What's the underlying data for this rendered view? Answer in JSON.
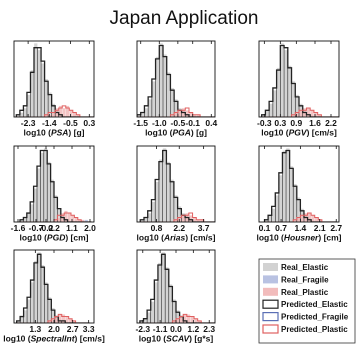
{
  "title": "Japan Application",
  "colors": {
    "real_elastic": "#d2d2d2",
    "real_fragile": "#b9c2e2",
    "real_plastic": "#f2bcbc",
    "predicted_elastic": "#222222",
    "predicted_fragile": "#5b6fb5",
    "predicted_plastic": "#e06060"
  },
  "legend": [
    {
      "key": "real_elastic",
      "label": "Real_Elastic",
      "kind": "fill"
    },
    {
      "key": "real_fragile",
      "label": "Real_Fragile",
      "kind": "fill"
    },
    {
      "key": "real_plastic",
      "label": "Real_Plastic",
      "kind": "fill"
    },
    {
      "key": "predicted_elastic",
      "label": "Predicted_Elastic",
      "kind": "line"
    },
    {
      "key": "predicted_fragile",
      "label": "Predicted_Fragile",
      "kind": "line"
    },
    {
      "key": "predicted_plastic",
      "label": "Predicted_Plastic",
      "kind": "line"
    }
  ],
  "chart_data": [
    {
      "type": "bar",
      "xlabel_pre": "log10 (",
      "xlabel_var": "PSA",
      "xlabel_post": ") [g]",
      "xlim": [
        -2.9,
        0.5
      ],
      "xticks": [
        -2.3,
        -1.4,
        -0.5,
        0.3
      ],
      "xtick_labels": [
        "-2.3",
        "-1.4",
        "-0.5",
        "0.3"
      ],
      "bin_start": -2.8,
      "bin_width": 0.15,
      "ylim": [
        0,
        34
      ],
      "series": [
        {
          "key": "real_elastic",
          "values": [
            1,
            2,
            4,
            10,
            21,
            33,
            30,
            24,
            17,
            11,
            6,
            3,
            1,
            0,
            0,
            0,
            0,
            0,
            0,
            0,
            0,
            0
          ]
        },
        {
          "key": "real_plastic",
          "values": [
            0,
            0,
            0,
            0,
            0,
            0,
            0,
            0,
            1,
            1,
            2,
            4,
            5,
            4,
            5,
            3,
            2,
            1,
            0,
            0,
            0,
            0
          ]
        },
        {
          "key": "predicted_elastic",
          "values": [
            1,
            3,
            5,
            11,
            20,
            31,
            31,
            25,
            16,
            10,
            5,
            2,
            1,
            0,
            0,
            0,
            0,
            0,
            0,
            0,
            0,
            0
          ]
        },
        {
          "key": "predicted_plastic",
          "values": [
            0,
            0,
            0,
            0,
            0,
            0,
            0,
            0,
            1,
            2,
            2,
            3,
            4,
            5,
            4,
            3,
            2,
            1,
            0,
            0,
            0,
            0
          ]
        }
      ]
    },
    {
      "type": "bar",
      "xlabel_pre": "log10 (",
      "xlabel_var": "PGA",
      "xlabel_post": ") [g]",
      "xlim": [
        -1.6,
        0.5
      ],
      "xticks": [
        -1.5,
        -1.0,
        -0.5,
        -0.1,
        0.4
      ],
      "xtick_labels": [
        "-1.5",
        "-1.0",
        "-0.5",
        "-0.1",
        "0.4"
      ],
      "bin_start": -1.6,
      "bin_width": 0.1,
      "ylim": [
        0,
        34
      ],
      "series": [
        {
          "key": "real_elastic",
          "values": [
            1,
            2,
            4,
            8,
            16,
            27,
            33,
            28,
            20,
            13,
            8,
            4,
            2,
            1,
            0,
            0,
            0,
            0,
            0,
            0,
            0
          ]
        },
        {
          "key": "real_plastic",
          "values": [
            0,
            0,
            0,
            0,
            0,
            0,
            0,
            0,
            0,
            1,
            2,
            3,
            4,
            3,
            2,
            1,
            1,
            0,
            0,
            0,
            0
          ]
        },
        {
          "key": "predicted_elastic",
          "values": [
            1,
            2,
            5,
            9,
            17,
            26,
            32,
            27,
            19,
            12,
            7,
            3,
            2,
            1,
            0,
            0,
            0,
            0,
            0,
            0,
            0
          ]
        },
        {
          "key": "predicted_plastic",
          "values": [
            0,
            0,
            0,
            0,
            0,
            0,
            0,
            0,
            0,
            1,
            2,
            3,
            3,
            4,
            2,
            1,
            1,
            0,
            0,
            0,
            0
          ]
        }
      ]
    },
    {
      "type": "bar",
      "xlabel_pre": "log10 (",
      "xlabel_var": "PGV",
      "xlabel_post": ") [cm/s]",
      "xlim": [
        -0.5,
        2.5
      ],
      "xticks": [
        -0.3,
        0.3,
        0.9,
        1.6,
        2.2
      ],
      "xtick_labels": [
        "-0.3",
        "0.3",
        "0.9",
        "1.6",
        "2.2"
      ],
      "bin_start": -0.4,
      "bin_width": 0.14,
      "ylim": [
        0,
        34
      ],
      "series": [
        {
          "key": "real_elastic",
          "values": [
            1,
            3,
            6,
            12,
            22,
            33,
            30,
            23,
            16,
            10,
            6,
            3,
            1,
            1,
            0,
            0,
            0,
            0,
            0,
            0,
            0
          ]
        },
        {
          "key": "real_plastic",
          "values": [
            0,
            0,
            0,
            0,
            0,
            0,
            0,
            0,
            1,
            2,
            3,
            4,
            4,
            3,
            2,
            1,
            0,
            0,
            0,
            0,
            0
          ]
        },
        {
          "key": "predicted_elastic",
          "values": [
            1,
            3,
            7,
            13,
            21,
            32,
            31,
            22,
            15,
            9,
            5,
            2,
            1,
            0,
            0,
            0,
            0,
            0,
            0,
            0,
            0
          ]
        },
        {
          "key": "predicted_plastic",
          "values": [
            0,
            0,
            0,
            0,
            0,
            0,
            0,
            0,
            1,
            2,
            3,
            3,
            4,
            3,
            2,
            1,
            0,
            0,
            0,
            0,
            0
          ]
        }
      ]
    },
    {
      "type": "bar",
      "xlabel_pre": "log10 (",
      "xlabel_var": "PGD",
      "xlabel_post": ") [cm]",
      "xlim": [
        -1.8,
        2.2
      ],
      "xticks": [
        -1.6,
        -0.7,
        -0.2,
        0.2,
        1.1,
        2.0
      ],
      "xtick_labels": [
        "-1.6",
        "-0.7",
        "-0.2",
        "0.2",
        "1.1",
        "2.0"
      ],
      "bin_start": -1.5,
      "bin_width": 0.17,
      "ylim": [
        0,
        34
      ],
      "series": [
        {
          "key": "real_elastic",
          "values": [
            1,
            2,
            4,
            8,
            15,
            24,
            31,
            33,
            27,
            19,
            12,
            6,
            3,
            1,
            0,
            0,
            0,
            0,
            0,
            0,
            0
          ]
        },
        {
          "key": "real_fragile",
          "values": [
            0,
            0,
            0,
            0,
            0,
            0,
            0,
            0,
            0,
            0,
            0,
            0,
            0,
            0,
            0,
            0,
            0,
            0,
            1,
            1,
            0
          ]
        },
        {
          "key": "real_plastic",
          "values": [
            0,
            0,
            0,
            0,
            0,
            0,
            0,
            0,
            0,
            0,
            1,
            2,
            4,
            5,
            4,
            3,
            2,
            1,
            1,
            0,
            0
          ]
        },
        {
          "key": "predicted_elastic",
          "values": [
            1,
            2,
            4,
            9,
            16,
            25,
            32,
            32,
            26,
            18,
            11,
            6,
            2,
            1,
            0,
            0,
            0,
            0,
            0,
            0,
            0
          ]
        },
        {
          "key": "predicted_plastic",
          "values": [
            0,
            0,
            0,
            0,
            0,
            0,
            0,
            0,
            0,
            0,
            1,
            3,
            3,
            4,
            4,
            3,
            2,
            1,
            0,
            0,
            0
          ]
        }
      ]
    },
    {
      "type": "bar",
      "xlabel_pre": "log10 (",
      "xlabel_var": "Arias",
      "xlabel_post": ") [cm/s]",
      "xlim": [
        -0.4,
        4.4
      ],
      "xticks": [
        0.8,
        2.2,
        3.7
      ],
      "xtick_labels": [
        "0.8",
        "2.2",
        "3.7"
      ],
      "bin_start": -0.2,
      "bin_width": 0.23,
      "ylim": [
        0,
        34
      ],
      "series": [
        {
          "key": "real_elastic",
          "values": [
            1,
            2,
            4,
            9,
            18,
            28,
            33,
            27,
            19,
            12,
            7,
            4,
            2,
            1,
            0,
            0,
            0,
            0,
            0,
            0,
            0
          ]
        },
        {
          "key": "real_plastic",
          "values": [
            0,
            0,
            0,
            0,
            0,
            0,
            0,
            0,
            0,
            1,
            2,
            3,
            4,
            3,
            2,
            1,
            1,
            0,
            0,
            0,
            0
          ]
        },
        {
          "key": "predicted_elastic",
          "values": [
            1,
            2,
            5,
            10,
            19,
            27,
            32,
            26,
            18,
            11,
            6,
            3,
            2,
            1,
            0,
            0,
            0,
            0,
            0,
            0,
            0
          ]
        },
        {
          "key": "predicted_plastic",
          "values": [
            0,
            0,
            0,
            0,
            0,
            0,
            0,
            0,
            0,
            1,
            2,
            3,
            3,
            4,
            2,
            1,
            1,
            0,
            0,
            0,
            0
          ]
        }
      ]
    },
    {
      "type": "bar",
      "xlabel_pre": "log10 (",
      "xlabel_var": "Housner",
      "xlabel_post": ") [cm]",
      "xlim": [
        -0.1,
        2.8
      ],
      "xticks": [
        0.1,
        0.7,
        1.4,
        2.1,
        2.7
      ],
      "xtick_labels": [
        "0.1",
        "0.7",
        "1.4",
        "2.1",
        "2.7"
      ],
      "bin_start": 0.1,
      "bin_width": 0.13,
      "ylim": [
        0,
        34
      ],
      "series": [
        {
          "key": "real_elastic",
          "values": [
            1,
            3,
            6,
            12,
            21,
            32,
            33,
            25,
            17,
            11,
            6,
            3,
            1,
            1,
            0,
            0,
            0,
            0,
            0,
            0
          ]
        },
        {
          "key": "real_plastic",
          "values": [
            0,
            0,
            0,
            0,
            0,
            0,
            0,
            0,
            1,
            2,
            3,
            4,
            4,
            3,
            2,
            1,
            0,
            0,
            0,
            0
          ]
        },
        {
          "key": "predicted_elastic",
          "values": [
            1,
            3,
            7,
            13,
            22,
            31,
            32,
            24,
            16,
            10,
            5,
            2,
            1,
            0,
            0,
            0,
            0,
            0,
            0,
            0
          ]
        },
        {
          "key": "predicted_plastic",
          "values": [
            0,
            0,
            0,
            0,
            0,
            0,
            0,
            0,
            1,
            2,
            3,
            3,
            4,
            3,
            2,
            1,
            0,
            0,
            0,
            0
          ]
        }
      ]
    },
    {
      "type": "bar",
      "xlabel_pre": "log10 (",
      "xlabel_var": "SpectralInt",
      "xlabel_post": ") [cm/s]",
      "xlim": [
        0.5,
        3.5
      ],
      "xticks": [
        1.3,
        2.0,
        2.7,
        3.3
      ],
      "xtick_labels": [
        "1.3",
        "2.0",
        "2.7",
        "3.3"
      ],
      "bin_start": 0.6,
      "bin_width": 0.13,
      "ylim": [
        0,
        34
      ],
      "series": [
        {
          "key": "real_elastic",
          "values": [
            1,
            3,
            6,
            11,
            19,
            29,
            33,
            27,
            19,
            12,
            7,
            3,
            2,
            1,
            0,
            0,
            0,
            0,
            0,
            0,
            0
          ]
        },
        {
          "key": "real_plastic",
          "values": [
            0,
            0,
            0,
            0,
            0,
            0,
            0,
            0,
            0,
            1,
            2,
            3,
            4,
            4,
            3,
            2,
            1,
            0,
            0,
            0,
            0
          ]
        },
        {
          "key": "predicted_elastic",
          "values": [
            1,
            3,
            7,
            12,
            20,
            28,
            32,
            26,
            18,
            11,
            6,
            3,
            1,
            1,
            0,
            0,
            0,
            0,
            0,
            0,
            0
          ]
        },
        {
          "key": "predicted_plastic",
          "values": [
            0,
            0,
            0,
            0,
            0,
            0,
            0,
            0,
            0,
            1,
            2,
            3,
            4,
            3,
            3,
            2,
            1,
            0,
            0,
            0,
            0
          ]
        }
      ]
    },
    {
      "type": "bar",
      "xlabel_pre": "log10 (",
      "xlabel_var": "SCAV",
      "xlabel_post": ") [g*s]",
      "xlim": [
        -2.7,
        2.7
      ],
      "xticks": [
        -2.3,
        -1.1,
        0.0,
        1.2,
        2.3
      ],
      "xtick_labels": [
        "-2.3",
        "-1.1",
        "0.0",
        "1.2",
        "2.3"
      ],
      "bin_start": -2.5,
      "bin_width": 0.25,
      "ylim": [
        0,
        34
      ],
      "series": [
        {
          "key": "real_elastic",
          "values": [
            1,
            2,
            5,
            10,
            19,
            28,
            33,
            26,
            18,
            11,
            6,
            3,
            1,
            1,
            0,
            0,
            0,
            0,
            0,
            0,
            0
          ]
        },
        {
          "key": "real_plastic",
          "values": [
            0,
            0,
            0,
            0,
            0,
            0,
            0,
            0,
            0,
            1,
            2,
            3,
            4,
            4,
            3,
            2,
            1,
            0,
            0,
            0,
            0
          ]
        },
        {
          "key": "predicted_elastic",
          "values": [
            1,
            2,
            6,
            11,
            20,
            27,
            32,
            25,
            17,
            10,
            5,
            3,
            1,
            0,
            0,
            0,
            0,
            0,
            0,
            0,
            0
          ]
        },
        {
          "key": "predicted_plastic",
          "values": [
            0,
            0,
            0,
            0,
            0,
            0,
            0,
            0,
            0,
            1,
            2,
            3,
            4,
            3,
            3,
            2,
            1,
            0,
            0,
            0,
            0
          ]
        }
      ]
    }
  ]
}
